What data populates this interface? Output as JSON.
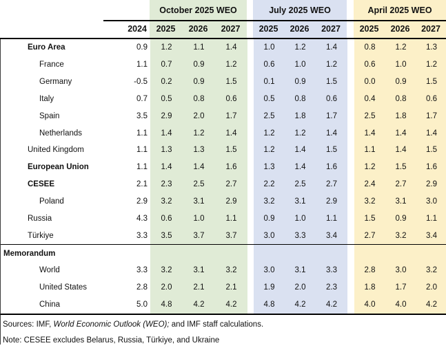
{
  "colors": {
    "october": "#e0ebd6",
    "july": "#dae1f1",
    "april": "#fcf0c8"
  },
  "header": {
    "base_year": "2024",
    "years": [
      "2025",
      "2026",
      "2027"
    ],
    "groups": [
      {
        "label": "October 2025 WEO"
      },
      {
        "label": "July 2025 WEO"
      },
      {
        "label": "April 2025 WEO"
      }
    ]
  },
  "rows": [
    {
      "label": "Euro Area",
      "bold": true,
      "indent": 1,
      "section": false,
      "base": "0.9",
      "oct": [
        "1.2",
        "1.1",
        "1.4"
      ],
      "jul": [
        "1.0",
        "1.2",
        "1.4"
      ],
      "apr": [
        "0.8",
        "1.2",
        "1.3"
      ]
    },
    {
      "label": "France",
      "bold": false,
      "indent": 2,
      "section": false,
      "base": "1.1",
      "oct": [
        "0.7",
        "0.9",
        "1.2"
      ],
      "jul": [
        "0.6",
        "1.0",
        "1.2"
      ],
      "apr": [
        "0.6",
        "1.0",
        "1.2"
      ]
    },
    {
      "label": "Germany",
      "bold": false,
      "indent": 2,
      "section": false,
      "base": "-0.5",
      "oct": [
        "0.2",
        "0.9",
        "1.5"
      ],
      "jul": [
        "0.1",
        "0.9",
        "1.5"
      ],
      "apr": [
        "0.0",
        "0.9",
        "1.5"
      ]
    },
    {
      "label": "Italy",
      "bold": false,
      "indent": 2,
      "section": false,
      "base": "0.7",
      "oct": [
        "0.5",
        "0.8",
        "0.6"
      ],
      "jul": [
        "0.5",
        "0.8",
        "0.6"
      ],
      "apr": [
        "0.4",
        "0.8",
        "0.6"
      ]
    },
    {
      "label": "Spain",
      "bold": false,
      "indent": 2,
      "section": false,
      "base": "3.5",
      "oct": [
        "2.9",
        "2.0",
        "1.7"
      ],
      "jul": [
        "2.5",
        "1.8",
        "1.7"
      ],
      "apr": [
        "2.5",
        "1.8",
        "1.7"
      ]
    },
    {
      "label": "Netherlands",
      "bold": false,
      "indent": 2,
      "section": false,
      "base": "1.1",
      "oct": [
        "1.4",
        "1.2",
        "1.4"
      ],
      "jul": [
        "1.2",
        "1.2",
        "1.4"
      ],
      "apr": [
        "1.4",
        "1.4",
        "1.4"
      ]
    },
    {
      "label": "United Kingdom",
      "bold": false,
      "indent": 1,
      "section": false,
      "base": "1.1",
      "oct": [
        "1.3",
        "1.3",
        "1.5"
      ],
      "jul": [
        "1.2",
        "1.4",
        "1.5"
      ],
      "apr": [
        "1.1",
        "1.4",
        "1.5"
      ]
    },
    {
      "label": "European Union",
      "bold": true,
      "indent": 1,
      "section": false,
      "base": "1.1",
      "oct": [
        "1.4",
        "1.4",
        "1.6"
      ],
      "jul": [
        "1.3",
        "1.4",
        "1.6"
      ],
      "apr": [
        "1.2",
        "1.5",
        "1.6"
      ]
    },
    {
      "label": "CESEE",
      "bold": true,
      "indent": 1,
      "section": false,
      "base": "2.1",
      "oct": [
        "2.3",
        "2.5",
        "2.7"
      ],
      "jul": [
        "2.2",
        "2.5",
        "2.7"
      ],
      "apr": [
        "2.4",
        "2.7",
        "2.9"
      ]
    },
    {
      "label": "Poland",
      "bold": false,
      "indent": 2,
      "section": false,
      "base": "2.9",
      "oct": [
        "3.2",
        "3.1",
        "2.9"
      ],
      "jul": [
        "3.2",
        "3.1",
        "2.9"
      ],
      "apr": [
        "3.2",
        "3.1",
        "3.0"
      ]
    },
    {
      "label": "Russia",
      "bold": false,
      "indent": 1,
      "section": false,
      "base": "4.3",
      "oct": [
        "0.6",
        "1.0",
        "1.1"
      ],
      "jul": [
        "0.9",
        "1.0",
        "1.1"
      ],
      "apr": [
        "1.5",
        "0.9",
        "1.1"
      ]
    },
    {
      "label": "Türkiye",
      "bold": false,
      "indent": 1,
      "section": false,
      "base": "3.3",
      "oct": [
        "3.5",
        "3.7",
        "3.7"
      ],
      "jul": [
        "3.0",
        "3.3",
        "3.4"
      ],
      "apr": [
        "2.7",
        "3.2",
        "3.4"
      ]
    },
    {
      "label": "Memorandum",
      "bold": true,
      "indent": 0,
      "section": true,
      "base": "",
      "oct": [
        "",
        "",
        ""
      ],
      "jul": [
        "",
        "",
        ""
      ],
      "apr": [
        "",
        "",
        ""
      ]
    },
    {
      "label": "World",
      "bold": false,
      "indent": 2,
      "section": false,
      "base": "3.3",
      "oct": [
        "3.2",
        "3.1",
        "3.2"
      ],
      "jul": [
        "3.0",
        "3.1",
        "3.3"
      ],
      "apr": [
        "2.8",
        "3.0",
        "3.2"
      ]
    },
    {
      "label": "United States",
      "bold": false,
      "indent": 2,
      "section": false,
      "base": "2.8",
      "oct": [
        "2.0",
        "2.1",
        "2.1"
      ],
      "jul": [
        "1.9",
        "2.0",
        "2.3"
      ],
      "apr": [
        "1.8",
        "1.7",
        "2.0"
      ]
    },
    {
      "label": "China",
      "bold": false,
      "indent": 2,
      "section": false,
      "base": "5.0",
      "oct": [
        "4.8",
        "4.2",
        "4.2"
      ],
      "jul": [
        "4.8",
        "4.2",
        "4.2"
      ],
      "apr": [
        "4.0",
        "4.0",
        "4.2"
      ]
    }
  ],
  "footer": {
    "sources_prefix": "Sources: IMF, ",
    "sources_italic": "World Economic Outlook (WEO);",
    "sources_suffix": " and IMF staff calculations.",
    "note": "Note: CESEE excludes Belarus, Russia, Türkiye, and Ukraine"
  }
}
